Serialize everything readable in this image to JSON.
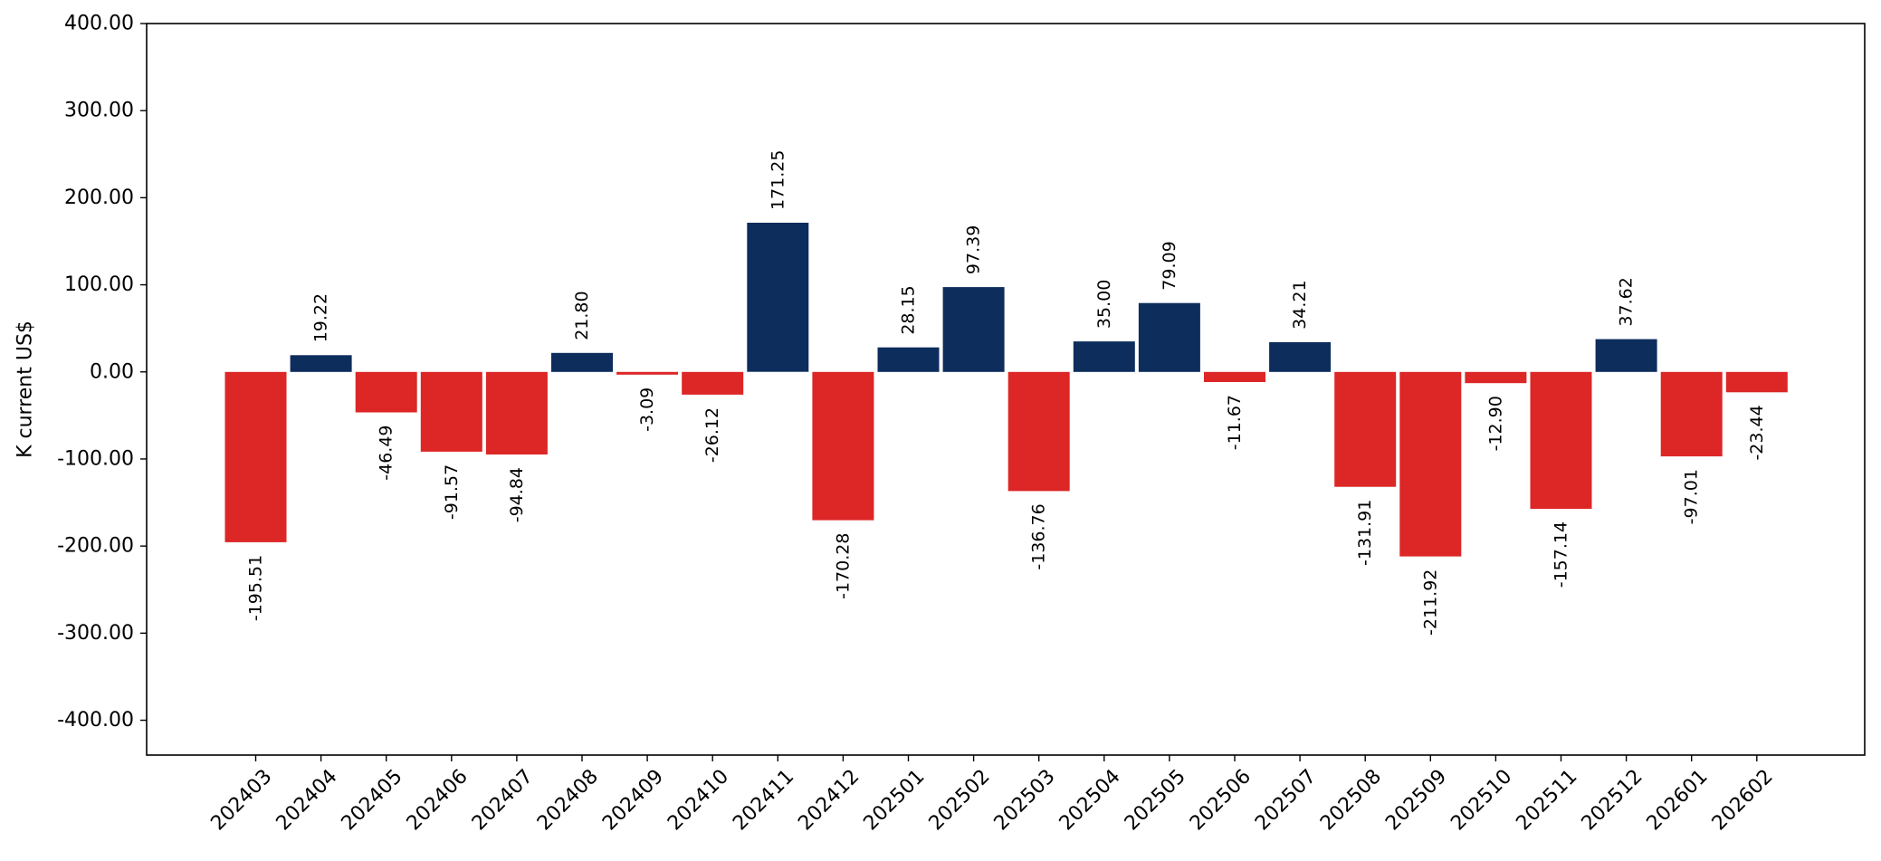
{
  "chart_data": {
    "type": "bar",
    "title": "",
    "xlabel": "",
    "ylabel": "K current US$",
    "ylim": [
      -440,
      400
    ],
    "yticks": [
      400,
      300,
      200,
      100,
      0,
      -100,
      -200,
      -300,
      -400
    ],
    "ytick_labels": [
      "400.00",
      "300.00",
      "200.00",
      "100.00",
      "0.00",
      "-100.00",
      "-200.00",
      "-300.00",
      "-400.00"
    ],
    "grid": false,
    "legend": "none",
    "colors": {
      "positive": "#0d2d5c",
      "negative": "#dd2626"
    },
    "categories": [
      "202403",
      "202404",
      "202405",
      "202406",
      "202407",
      "202408",
      "202409",
      "202410",
      "202411",
      "202412",
      "202501",
      "202502",
      "202503",
      "202504",
      "202505",
      "202506",
      "202507",
      "202508",
      "202509",
      "202510",
      "202511",
      "202512",
      "202601",
      "202602"
    ],
    "values": [
      -195.51,
      19.22,
      -46.49,
      -91.57,
      -94.84,
      21.8,
      -3.09,
      -26.12,
      171.25,
      -170.28,
      28.15,
      97.39,
      -136.76,
      35.0,
      79.09,
      -11.67,
      34.21,
      -131.91,
      -211.92,
      -12.9,
      -157.14,
      37.62,
      -97.01,
      -23.44
    ],
    "value_labels": [
      "-195.51",
      "19.22",
      "-46.49",
      "-91.57",
      "-94.84",
      "21.80",
      "-3.09",
      "-26.12",
      "171.25",
      "-170.28",
      "28.15",
      "97.39",
      "-136.76",
      "35.00",
      "79.09",
      "-11.67",
      "34.21",
      "-131.91",
      "-211.92",
      "-12.90",
      "-157.14",
      "37.62",
      "-97.01",
      "-23.44"
    ]
  }
}
